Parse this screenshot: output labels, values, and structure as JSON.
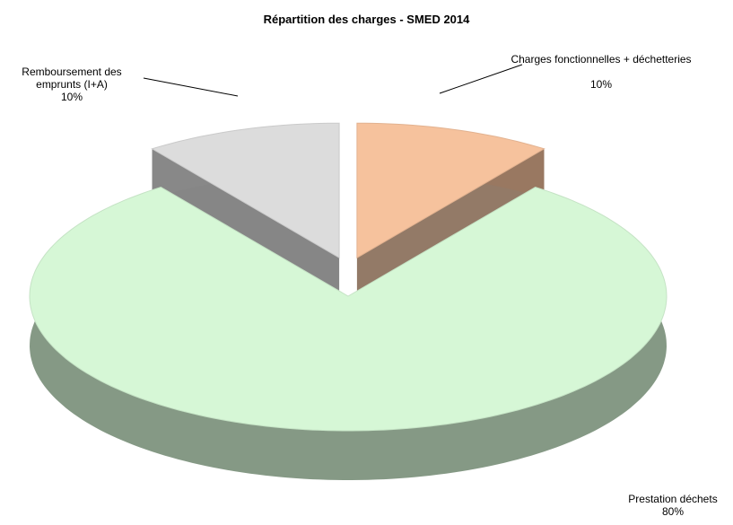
{
  "chart_data": {
    "type": "pie",
    "title": "Répartition des charges - SMED 2014",
    "categories": [
      "Charges fonctionnelles + déchetteries",
      "Prestation déchets",
      "Remboursement des emprunts (I+A)"
    ],
    "values": [
      10,
      80,
      10
    ],
    "value_labels": [
      "10%",
      "80%",
      "10%"
    ],
    "colors": [
      "#f6c29d",
      "#d6f7d6",
      "#dcdcdc"
    ]
  }
}
